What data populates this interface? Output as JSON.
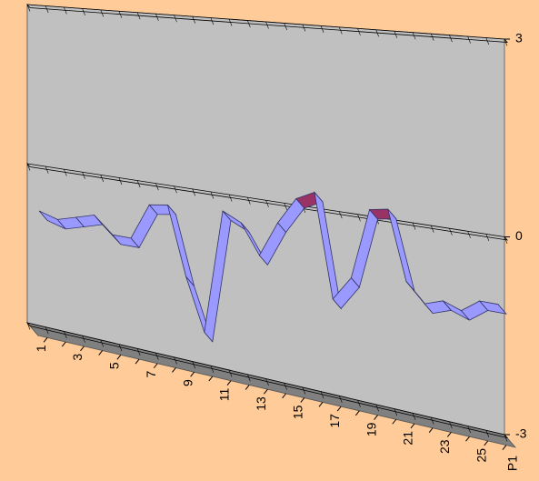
{
  "chart_data": {
    "type": "ribbon3d",
    "categories": [
      1,
      null,
      3,
      null,
      5,
      null,
      7,
      null,
      9,
      null,
      11,
      null,
      13,
      null,
      15,
      null,
      17,
      null,
      19,
      null,
      21,
      null,
      23,
      null,
      25,
      null
    ],
    "series": [
      {
        "name": "P1",
        "color": "#9999ff",
        "values": [
          -0.8,
          -0.9,
          -0.8,
          -0.7,
          -1.0,
          -1.0,
          -0.35,
          -0.3,
          -1.5,
          -2.4,
          -0.25,
          -0.4,
          -0.9,
          -0.3,
          0.15,
          0.3,
          -1.4,
          -1.0,
          0.15,
          0.2,
          -0.9,
          -1.2,
          -1.1,
          -1.2,
          -1.0,
          -1.0
        ]
      }
    ],
    "ylim": [
      -3,
      3
    ],
    "yticks": [
      -3,
      0,
      3
    ],
    "grid": true
  }
}
